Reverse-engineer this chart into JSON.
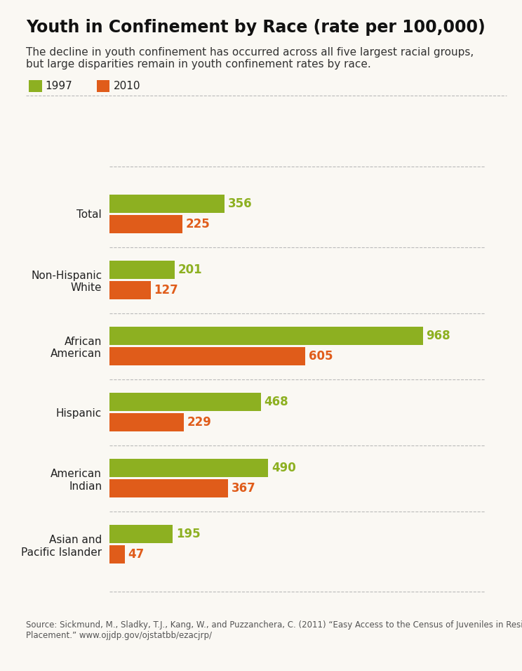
{
  "title": "Youth in Confinement by Race (rate per 100,000)",
  "subtitle_line1": "The decline in youth confinement has occurred across all five largest racial groups,",
  "subtitle_line2": "but large disparities remain in youth confinement rates by race.",
  "source_text": "Source: Sickmund, M., Sladky, T.J., Kang, W., and Puzzanchera, C. (2011) “Easy Access to the Census of Juveniles in Residential\nPlacement.” www.ojjdp.gov/ojstatbb/ezacjrp/",
  "categories": [
    "Total",
    "Non-Hispanic\nWhite",
    "African\nAmerican",
    "Hispanic",
    "American\nIndian",
    "Asian and\nPacific Islander"
  ],
  "values_1997": [
    356,
    201,
    968,
    468,
    490,
    195
  ],
  "values_2010": [
    225,
    127,
    605,
    229,
    367,
    47
  ],
  "color_1997": "#8db021",
  "color_2010": "#e05c1a",
  "background_color": "#faf8f3",
  "label_color_1997": "#8db021",
  "label_color_2010": "#e05c1a",
  "title_fontsize": 17,
  "subtitle_fontsize": 11,
  "bar_height": 0.28,
  "max_value": 968,
  "legend_1997": "1997",
  "legend_2010": "2010",
  "cat_label_fontsize": 11,
  "value_label_fontsize": 12
}
